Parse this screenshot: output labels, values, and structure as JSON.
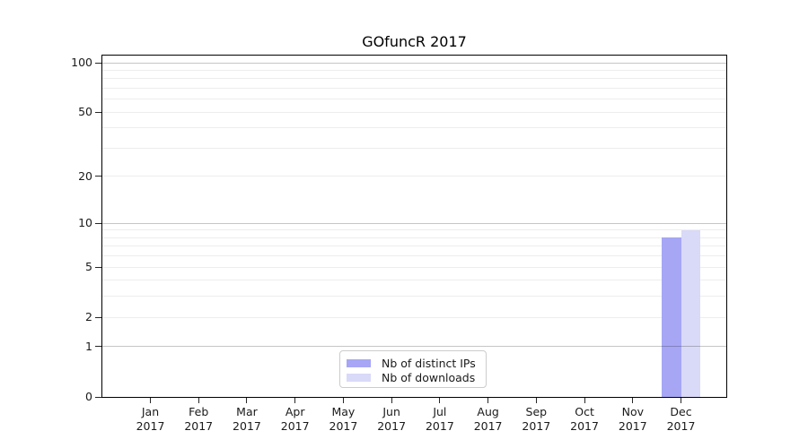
{
  "chart_data": {
    "type": "bar",
    "title": "GOfuncR 2017",
    "categories": [
      "Jan",
      "Feb",
      "Mar",
      "Apr",
      "May",
      "Jun",
      "Jul",
      "Aug",
      "Sep",
      "Oct",
      "Nov",
      "Dec"
    ],
    "year": "2017",
    "series": [
      {
        "name": "Nb of distinct IPs",
        "color": "#a6a6f5",
        "values": [
          0,
          0,
          0,
          0,
          0,
          0,
          0,
          0,
          0,
          0,
          0,
          8
        ]
      },
      {
        "name": "Nb of downloads",
        "color": "#d9d9f8",
        "values": [
          0,
          0,
          0,
          0,
          0,
          0,
          0,
          0,
          0,
          0,
          0,
          9
        ]
      }
    ],
    "y_axis": {
      "scale": "log10(value+1)",
      "ylim": [
        0,
        100
      ],
      "tick_values": [
        0,
        1,
        2,
        5,
        10,
        20,
        50,
        100
      ],
      "major_gridlines": [
        1,
        10,
        100
      ],
      "minor_gridlines": [
        2,
        3,
        4,
        5,
        6,
        7,
        8,
        9,
        20,
        30,
        40,
        50,
        60,
        70,
        80,
        90
      ]
    },
    "legend": {
      "position": "bottom-center",
      "entries": [
        "Nb of distinct IPs",
        "Nb of downloads"
      ]
    },
    "grid": true,
    "colors": {
      "major_grid": "#c6c6c6",
      "minor_grid": "#ededed",
      "axis": "#000000",
      "tick_text": "#1a1a1a",
      "background": "#ffffff"
    }
  }
}
